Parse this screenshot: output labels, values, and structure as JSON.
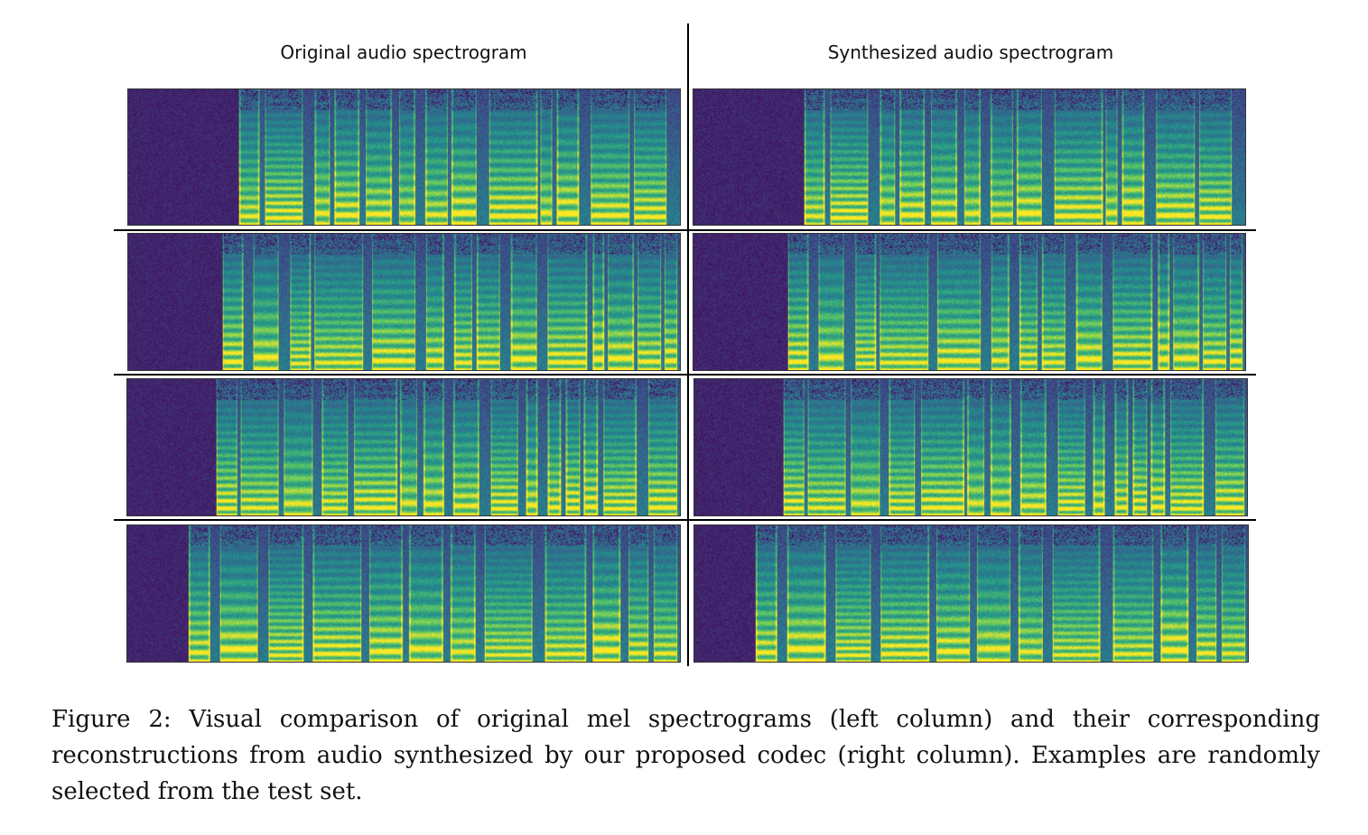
{
  "figure": {
    "left_title": "Original audio spectrogram",
    "right_title": "Synthesized audio spectrogram",
    "caption": "Figure 2: Visual comparison of original mel spectrograms (left column) and their corresponding reconstructions from audio synthesized by our proposed codec (right column). Examples are randomly selected from the test set.",
    "colormap": [
      "#440154",
      "#3b528b",
      "#21918c",
      "#5ec962",
      "#fde725"
    ],
    "rows": [
      {
        "label": "example-1"
      },
      {
        "label": "example-2"
      },
      {
        "label": "example-3"
      },
      {
        "label": "example-4"
      }
    ]
  }
}
